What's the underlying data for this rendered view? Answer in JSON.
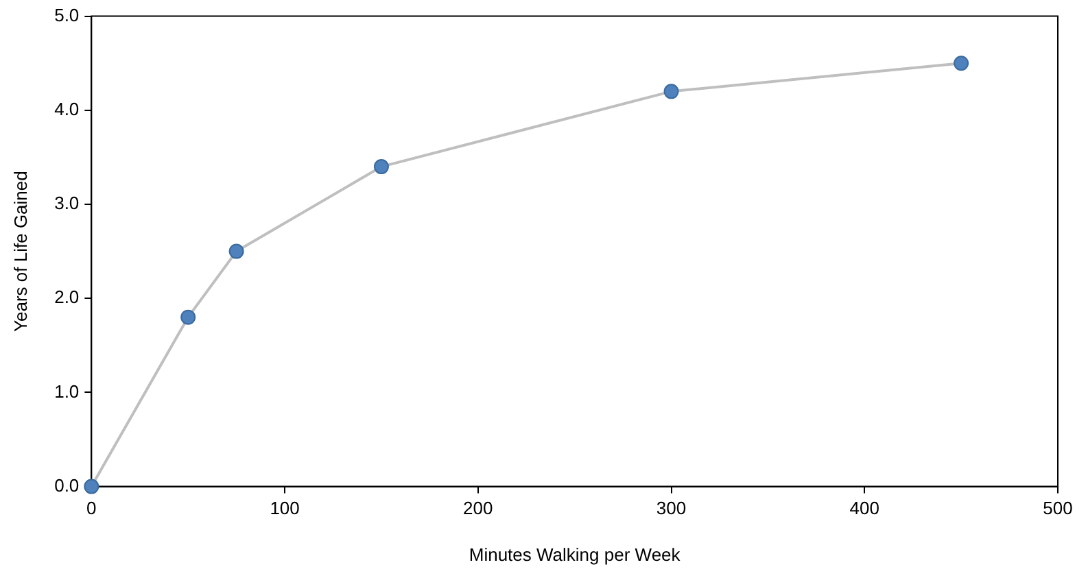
{
  "chart_data": {
    "type": "line",
    "xlabel": "Minutes Walking per Week",
    "ylabel": "Years of Life Gained",
    "x": [
      0,
      50,
      75,
      150,
      300,
      450
    ],
    "series": [
      {
        "color": "#4f81bd",
        "values": [
          0,
          1.8,
          2.5,
          3.4,
          4.2,
          4.5
        ]
      }
    ],
    "xlim": [
      0,
      500
    ],
    "xticks": [
      0,
      100,
      200,
      300,
      400,
      500
    ],
    "ylim": [
      0,
      5
    ],
    "yticks": [
      {
        "value": 0,
        "label": "0.0"
      },
      {
        "value": 1,
        "label": "1.0"
      },
      {
        "value": 2,
        "label": "2.0"
      },
      {
        "value": 3,
        "label": "3.0"
      },
      {
        "value": 4,
        "label": "4.0"
      },
      {
        "value": 5,
        "label": "5.0"
      }
    ],
    "grid": false,
    "legend": false,
    "marker": "circle",
    "line_style": "solid"
  }
}
